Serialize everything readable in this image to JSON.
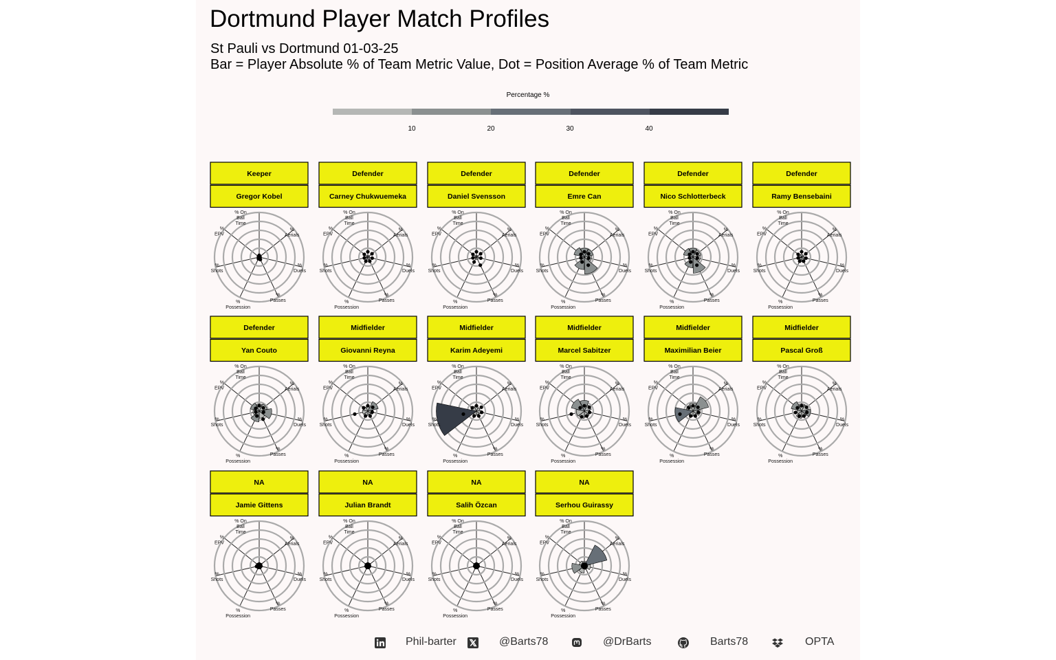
{
  "title": "Dortmund Player Match Profiles",
  "subtitle_line1": "St Pauli vs Dortmund 01-03-25",
  "subtitle_line2": "Bar = Player Absolute % of Team Metric Value, Dot = Position Average % of Team Metric",
  "legend": {
    "title": "Percentage %",
    "ticks": [
      "10",
      "20",
      "30",
      "40"
    ],
    "colors": [
      "#b5b7b5",
      "#8b9090",
      "#676f77",
      "#4e5460",
      "#363c47"
    ]
  },
  "colors": {
    "strip_fill": "#eeef0d",
    "ring": "#aaaaaa",
    "dot": "#000000",
    "background": "#fdf8f8"
  },
  "caption": {
    "linkedin": "Phil-barter",
    "twitter": "@Barts78",
    "mastodon": "@DrBarts",
    "github": "Barts78",
    "source": "OPTA"
  },
  "chart_data": {
    "type": "radial-bar-small-multiples",
    "axes": [
      "% On Ball Time",
      "% Aerials",
      "% Duels",
      "% Passes",
      "% Possession",
      "% Shots",
      "% EPV"
    ],
    "radial_max": 50,
    "panels": [
      {
        "position": "Keeper",
        "player": "Gregor Kobel",
        "values": [
          1,
          1,
          1,
          4,
          3,
          0,
          1
        ],
        "position_avg": [
          2,
          1,
          1,
          3,
          2,
          0,
          1
        ]
      },
      {
        "position": "Defender",
        "player": "Carney Chukwuemeka",
        "values": [
          2,
          2,
          2,
          3,
          2,
          1,
          2
        ],
        "position_avg": [
          6,
          6,
          5,
          5,
          5,
          4,
          5
        ]
      },
      {
        "position": "Defender",
        "player": "Daniel Svensson",
        "values": [
          2,
          2,
          2,
          3,
          2,
          1,
          2
        ],
        "position_avg": [
          6,
          6,
          5,
          10,
          6,
          4,
          5
        ]
      },
      {
        "position": "Defender",
        "player": "Emre Can",
        "values": [
          10,
          10,
          8,
          19,
          14,
          4,
          12
        ],
        "position_avg": [
          6,
          6,
          5,
          10,
          6,
          4,
          5
        ]
      },
      {
        "position": "Defender",
        "player": "Nico Schlotterbeck",
        "values": [
          10,
          9,
          8,
          18,
          12,
          3,
          11
        ],
        "position_avg": [
          6,
          6,
          5,
          10,
          6,
          4,
          5
        ]
      },
      {
        "position": "Defender",
        "player": "Ramy Bensebaini",
        "values": [
          3,
          2,
          3,
          5,
          3,
          1,
          3
        ],
        "position_avg": [
          6,
          6,
          5,
          5,
          5,
          4,
          5
        ]
      },
      {
        "position": "Defender",
        "player": "Yan Couto",
        "values": [
          8,
          9,
          14,
          8,
          12,
          7,
          10
        ],
        "position_avg": [
          6,
          6,
          5,
          10,
          6,
          4,
          5
        ]
      },
      {
        "position": "Midfielder",
        "player": "Giovanni Reyna",
        "values": [
          5,
          12,
          6,
          4,
          5,
          6,
          5
        ],
        "position_avg": [
          6,
          7,
          5,
          6,
          6,
          15,
          6
        ]
      },
      {
        "position": "Midfielder",
        "player": "Karim Adeyemi",
        "values": [
          5,
          4,
          5,
          4,
          5,
          45,
          6
        ],
        "position_avg": [
          6,
          7,
          6,
          6,
          6,
          15,
          6
        ]
      },
      {
        "position": "Midfielder",
        "player": "Marcel Sabitzer",
        "values": [
          12,
          8,
          6,
          7,
          8,
          9,
          15
        ],
        "position_avg": [
          6,
          7,
          6,
          6,
          7,
          15,
          6
        ]
      },
      {
        "position": "Midfielder",
        "player": "Maximilian Beier",
        "values": [
          9,
          18,
          8,
          5,
          6,
          20,
          8
        ],
        "position_avg": [
          6,
          7,
          6,
          6,
          6,
          15,
          6
        ]
      },
      {
        "position": "Midfielder",
        "player": "Pascal Groß",
        "values": [
          8,
          8,
          10,
          7,
          8,
          5,
          12
        ],
        "position_avg": [
          6,
          7,
          6,
          6,
          6,
          7,
          6
        ]
      },
      {
        "position": "NA",
        "player": "Jamie Gittens",
        "values": [
          2,
          3,
          3,
          2,
          3,
          4,
          2
        ],
        "position_avg": [
          2,
          2,
          2,
          2,
          2,
          3,
          2
        ]
      },
      {
        "position": "NA",
        "player": "Julian Brandt",
        "values": [
          3,
          3,
          2,
          2,
          3,
          2,
          3
        ],
        "position_avg": [
          2,
          2,
          2,
          2,
          2,
          2,
          2
        ]
      },
      {
        "position": "NA",
        "player": "Salih Özcan",
        "values": [
          3,
          2,
          3,
          2,
          2,
          2,
          2
        ],
        "position_avg": [
          2,
          2,
          2,
          2,
          2,
          2,
          2
        ]
      },
      {
        "position": "NA",
        "player": "Serhou Guirassy",
        "values": [
          5,
          26,
          7,
          4,
          8,
          14,
          6
        ],
        "position_avg": [
          2,
          2,
          2,
          2,
          2,
          2,
          2
        ]
      }
    ]
  }
}
